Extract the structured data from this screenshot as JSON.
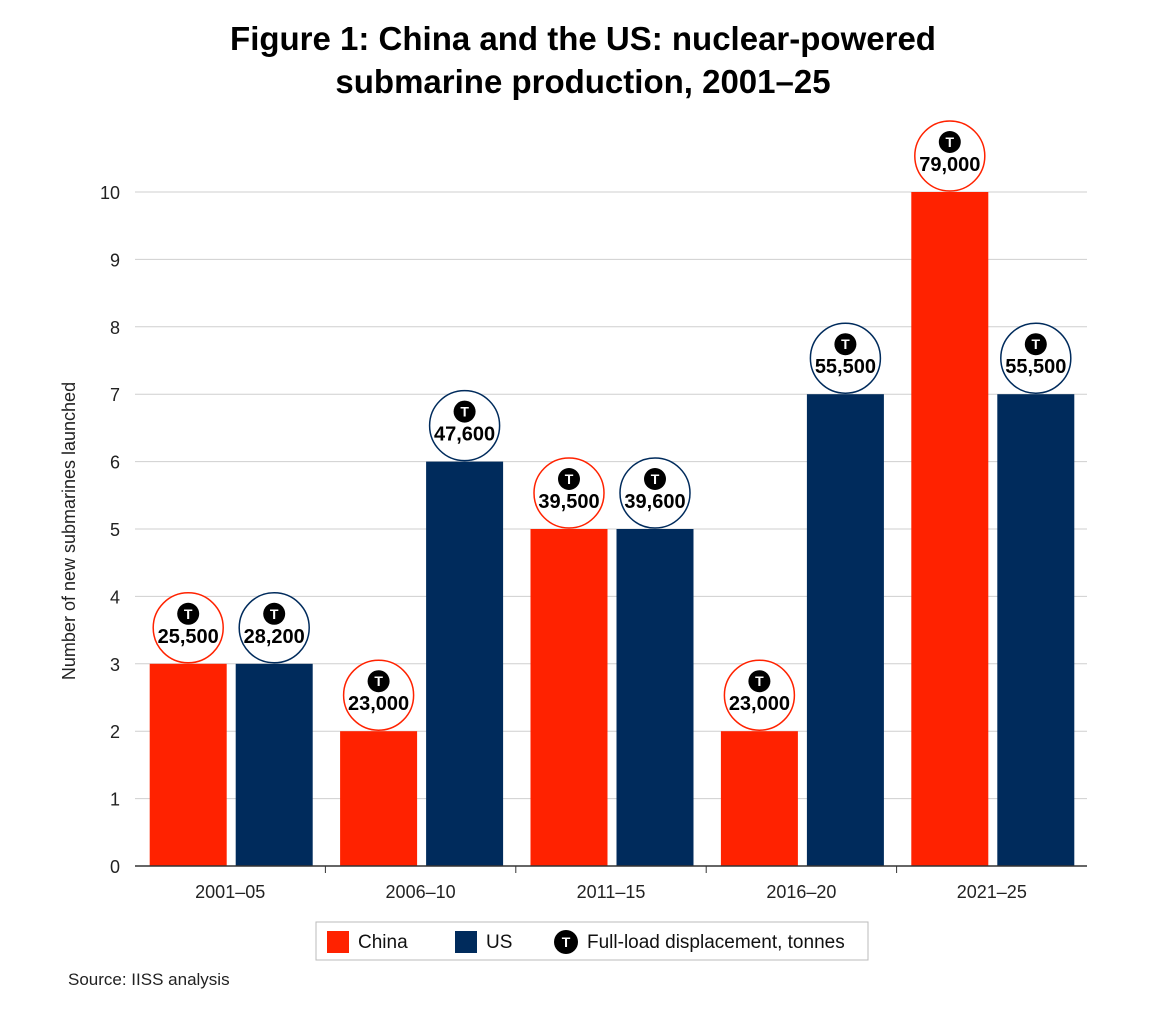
{
  "chart_data": {
    "type": "bar",
    "title": "Figure 1: China and the US: nuclear-powered",
    "title_line2": "submarine production, 2001–25",
    "ylabel": "Number of new submarines launched",
    "xlabel": "",
    "ylim": [
      0,
      10
    ],
    "yticks": [
      "0",
      "1",
      "2",
      "3",
      "4",
      "5",
      "6",
      "7",
      "8",
      "9",
      "10"
    ],
    "grid": true,
    "categories": [
      "2001–05",
      "2006–10",
      "2011–15",
      "2016–20",
      "2021–25"
    ],
    "series": [
      {
        "name": "China",
        "color": "#ff2200",
        "values": [
          3,
          2,
          5,
          2,
          10
        ],
        "displacement_labels": [
          "25,500",
          "23,000",
          "39,500",
          "23,000",
          "79,000"
        ]
      },
      {
        "name": "US",
        "color": "#002b5c",
        "values": [
          3,
          6,
          5,
          7,
          7
        ],
        "displacement_labels": [
          "28,200",
          "47,600",
          "39,600",
          "55,500",
          "55,500"
        ]
      }
    ],
    "legend": {
      "placement": "bottom-center",
      "items": [
        "China",
        "US"
      ],
      "symbol_letter": "T",
      "symbol_label": "Full-load displacement, tonnes"
    },
    "source": "Source: IISS analysis"
  }
}
